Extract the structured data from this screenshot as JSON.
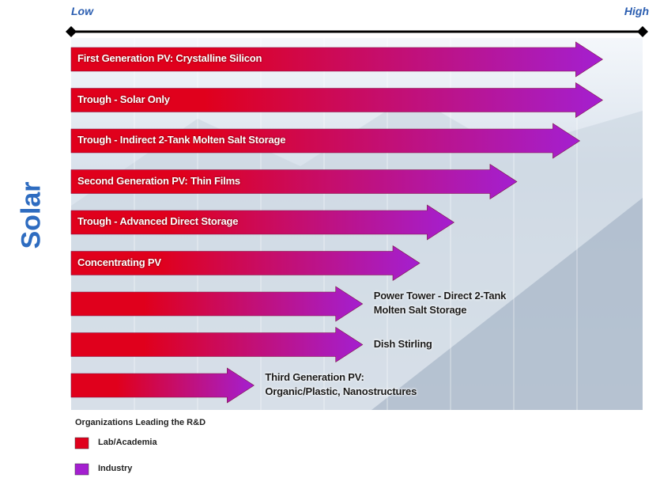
{
  "chart_data": {
    "type": "arrow-bar",
    "ylabel": "Solar",
    "categories": [
      "First Generation PV: Crystalline Silicon",
      "Trough - Solar Only",
      "Trough - Indirect 2-Tank Molten Salt Storage",
      "Second Generation PV: Thin Films",
      "Trough - Advanced Direct Storage",
      "Concentrating PV",
      "Power Tower - Direct 2-Tank\nMolten Salt Storage",
      "Dish Stirling",
      "Third Generation PV:\nOrganic/Plastic, Nanostructures"
    ],
    "values": [
      0.93,
      0.93,
      0.89,
      0.78,
      0.67,
      0.61,
      0.51,
      0.51,
      0.32
    ],
    "xlim": [
      0,
      1
    ],
    "xticks": [
      {
        "value": 0,
        "label": "Low"
      },
      {
        "value": 1,
        "label": "High"
      }
    ],
    "legend": {
      "title": "Organizations Leading the R&D",
      "items": [
        {
          "name": "Lab/Academia",
          "color": "#e0001c"
        },
        {
          "name": "Industry",
          "color": "#a41fd0"
        }
      ]
    }
  }
}
